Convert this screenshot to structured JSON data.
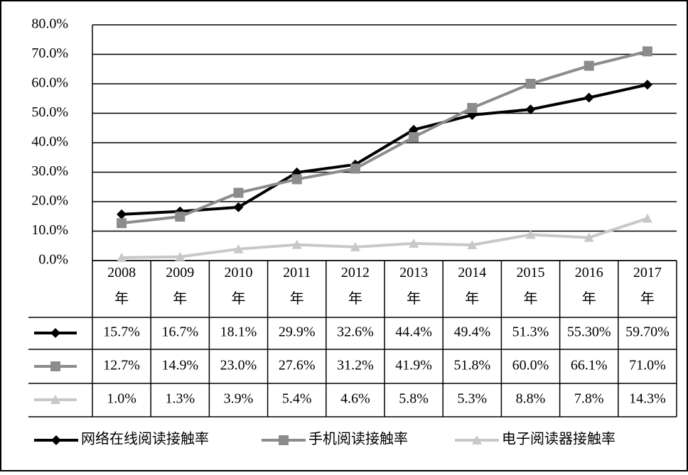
{
  "chart_data": {
    "type": "line",
    "categories": [
      "2008年",
      "2009年",
      "2010年",
      "2011年",
      "2012年",
      "2013年",
      "2014年",
      "2015年",
      "2016年",
      "2017年"
    ],
    "series": [
      {
        "name": "网络在线阅读接触率",
        "color": "#000000",
        "marker": "diamond",
        "values": [
          15.7,
          16.7,
          18.1,
          29.9,
          32.6,
          44.4,
          49.4,
          51.3,
          55.3,
          59.7
        ],
        "value_labels": [
          "15.7%",
          "16.7%",
          "18.1%",
          "29.9%",
          "32.6%",
          "44.4%",
          "49.4%",
          "51.3%",
          "55.30%",
          "59.70%"
        ]
      },
      {
        "name": "手机阅读接触率",
        "color": "#8c8c8c",
        "marker": "square",
        "values": [
          12.7,
          14.9,
          23.0,
          27.6,
          31.2,
          41.9,
          51.8,
          60.0,
          66.1,
          71.0
        ],
        "value_labels": [
          "12.7%",
          "14.9%",
          "23.0%",
          "27.6%",
          "31.2%",
          "41.9%",
          "51.8%",
          "60.0%",
          "66.1%",
          "71.0%"
        ]
      },
      {
        "name": "电子阅读器接触率",
        "color": "#c8c8c8",
        "marker": "triangle",
        "values": [
          1.0,
          1.3,
          3.9,
          5.4,
          4.6,
          5.8,
          5.3,
          8.8,
          7.8,
          14.3
        ],
        "value_labels": [
          "1.0%",
          "1.3%",
          "3.9%",
          "5.4%",
          "4.6%",
          "5.8%",
          "5.3%",
          "8.8%",
          "7.8%",
          "14.3%"
        ]
      }
    ],
    "ylim": [
      0,
      80
    ],
    "yticks": [
      {
        "value": 0,
        "label": "0.0%"
      },
      {
        "value": 10,
        "label": "10.0%"
      },
      {
        "value": 20,
        "label": "20.0%"
      },
      {
        "value": 30,
        "label": "30.0%"
      },
      {
        "value": 40,
        "label": "40.0%"
      },
      {
        "value": 50,
        "label": "50.0%"
      },
      {
        "value": 60,
        "label": "60.0%"
      },
      {
        "value": 70,
        "label": "70.0%"
      },
      {
        "value": 80,
        "label": "80.0%"
      }
    ],
    "grid": true
  }
}
